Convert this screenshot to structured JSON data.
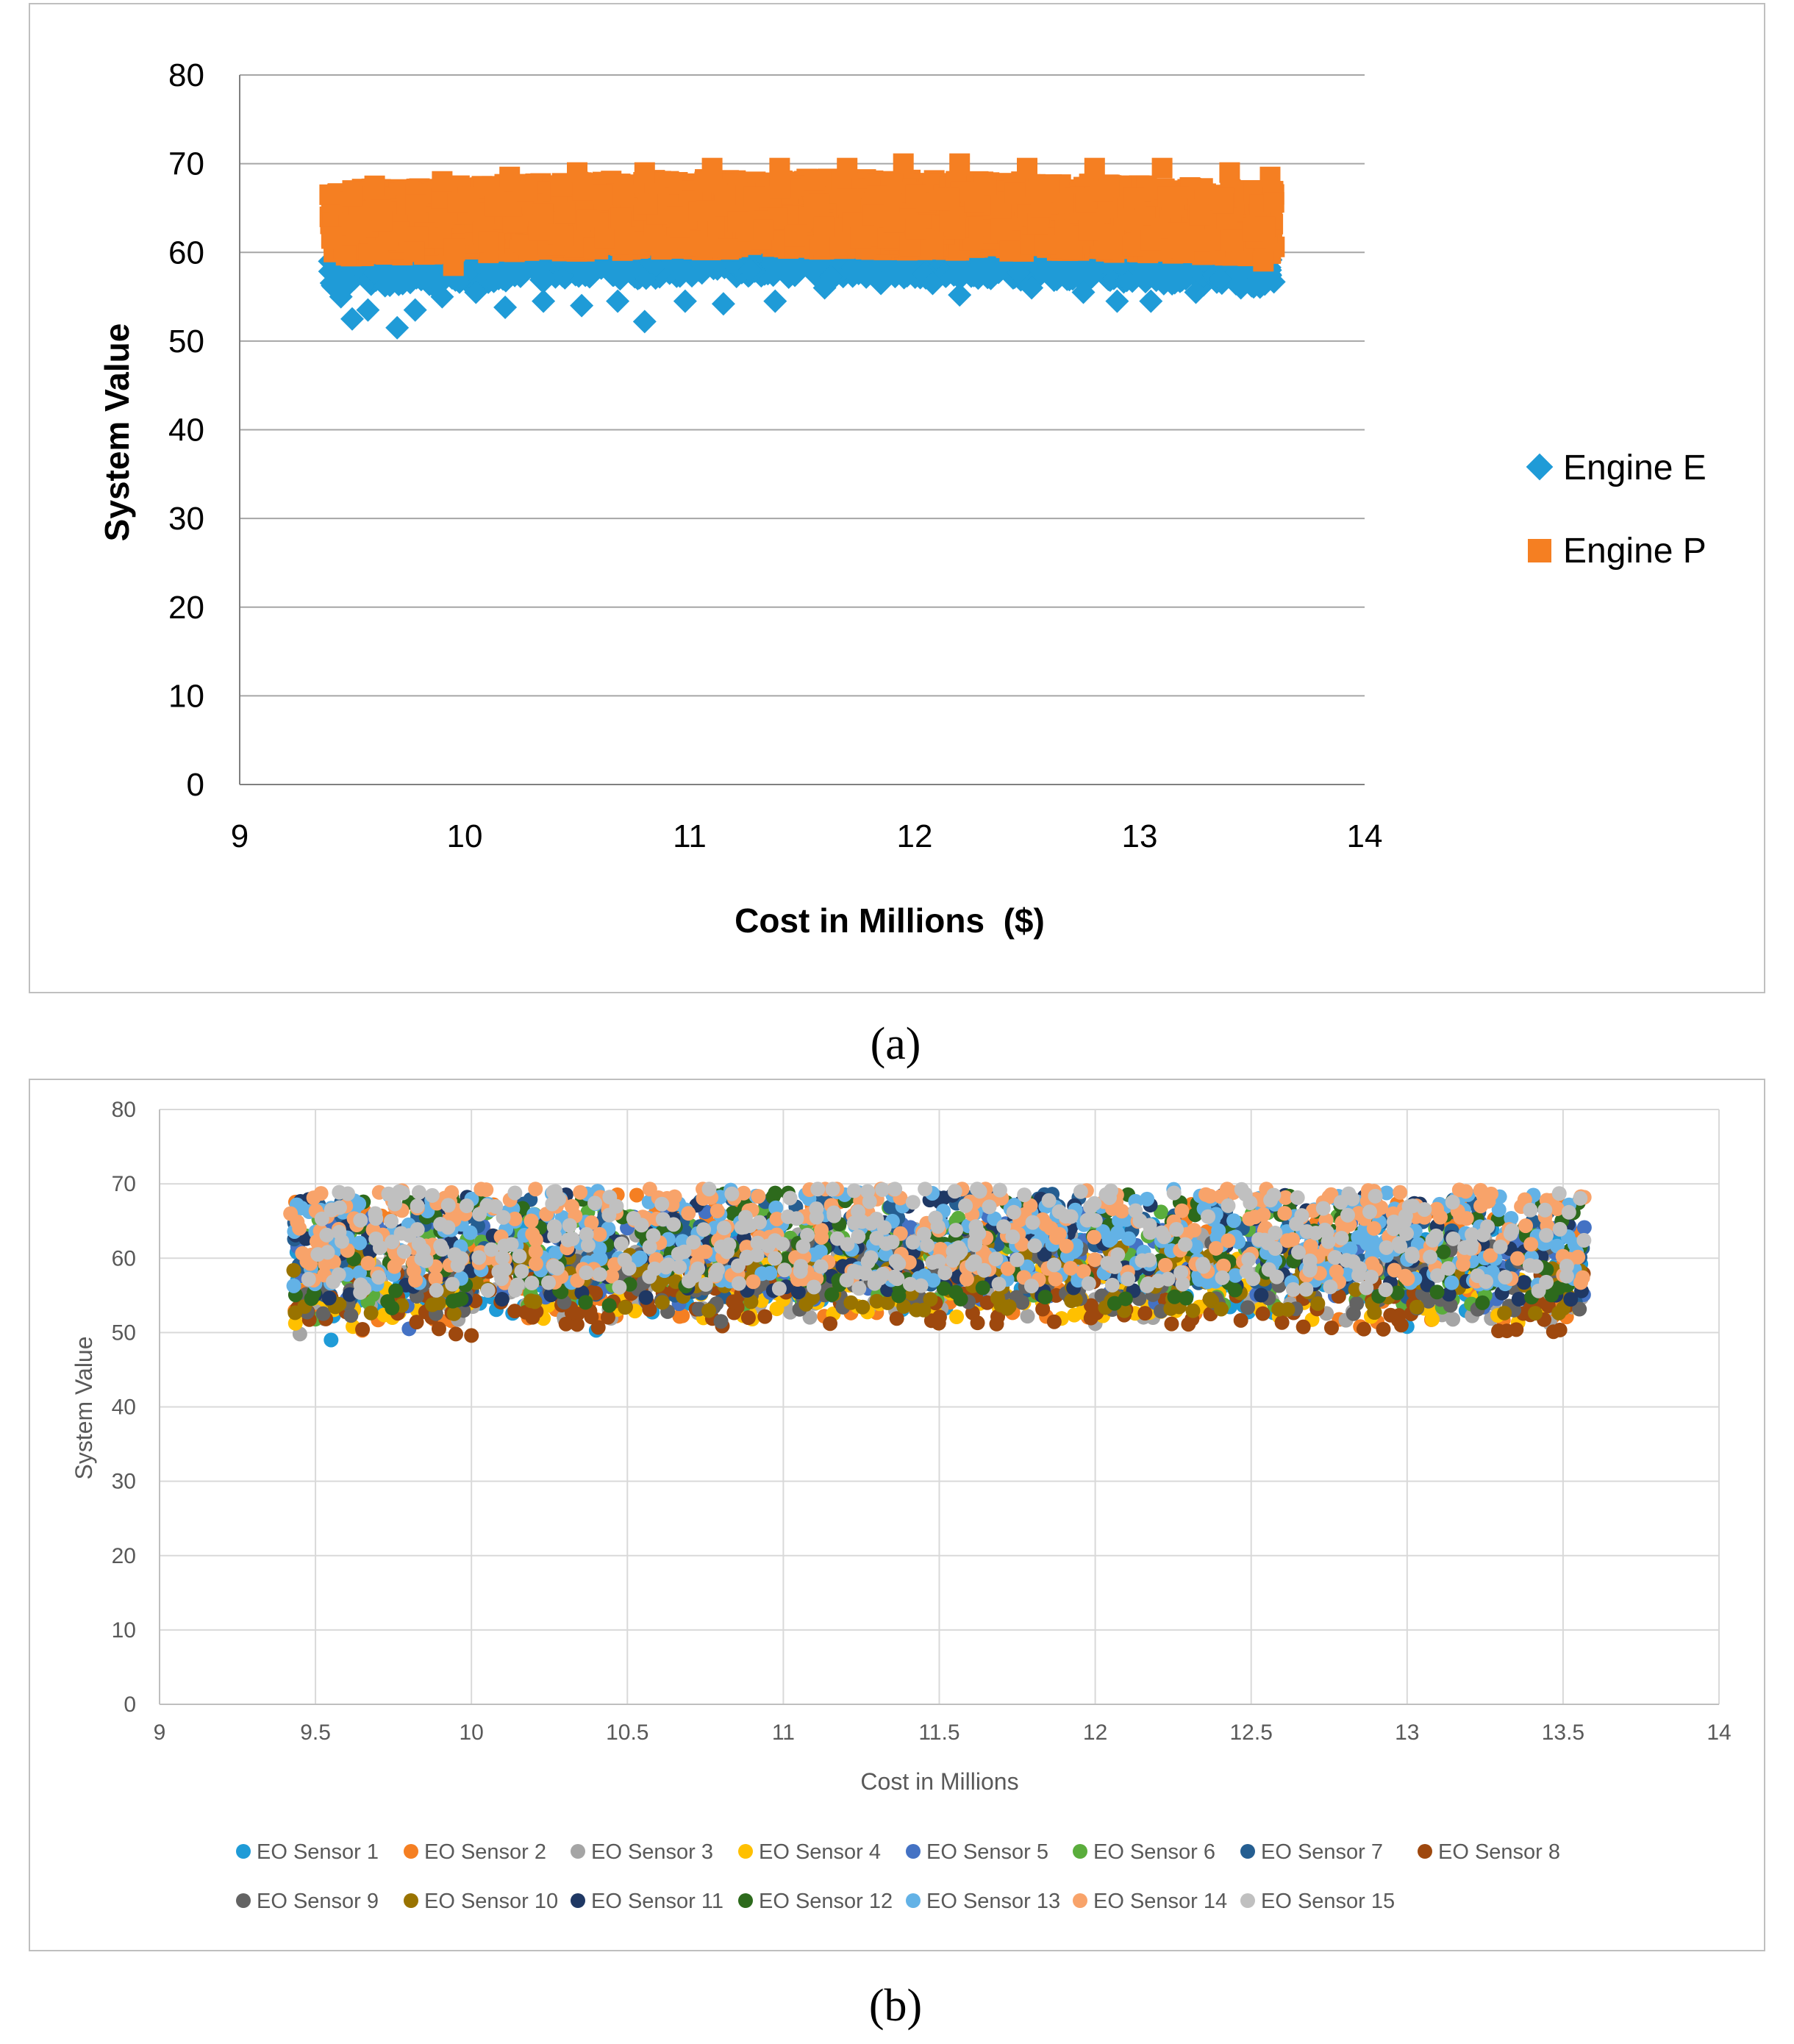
{
  "chart_data": [
    {
      "panel_label": "a",
      "type": "scatter",
      "title": "",
      "xlabel": "Cost in Millions  ($)",
      "ylabel": "System Value",
      "xlim": [
        9,
        14
      ],
      "ylim": [
        0,
        80
      ],
      "x_ticks": [
        "9",
        "10",
        "11",
        "12",
        "13",
        "14"
      ],
      "y_ticks": [
        "0",
        "10",
        "20",
        "30",
        "40",
        "50",
        "60",
        "70",
        "80"
      ],
      "grid": true,
      "legend_position": "right",
      "x_range": [
        9.4,
        13.6
      ],
      "series": [
        {
          "name": "Engine E",
          "color": "#1f9bd7",
          "marker": "diamond",
          "band": {
            "lower": 56,
            "upper": 60
          },
          "outliers": [
            [
              9.4,
              59
            ],
            [
              9.45,
              55
            ],
            [
              9.5,
              52.5
            ],
            [
              9.57,
              53.5
            ],
            [
              9.7,
              51.5
            ],
            [
              9.78,
              53.5
            ],
            [
              9.9,
              55
            ],
            [
              10.05,
              55.5
            ],
            [
              10.18,
              53.8
            ],
            [
              10.35,
              54.5
            ],
            [
              10.52,
              54
            ],
            [
              10.68,
              54.5
            ],
            [
              10.8,
              52.2
            ],
            [
              10.98,
              54.5
            ],
            [
              11.15,
              54.2
            ],
            [
              11.38,
              54.5
            ],
            [
              11.6,
              56
            ],
            [
              11.85,
              56.5
            ],
            [
              12.08,
              56.5
            ],
            [
              12.2,
              55.2
            ],
            [
              12.52,
              56
            ],
            [
              12.75,
              55.5
            ],
            [
              12.9,
              54.5
            ],
            [
              13.05,
              54.5
            ],
            [
              13.25,
              55.5
            ],
            [
              13.45,
              56
            ],
            [
              13.58,
              57.5
            ]
          ]
        },
        {
          "name": "Engine P",
          "color": "#f57f22",
          "marker": "square",
          "band": {
            "lower": 59.5,
            "upper": 68.5
          },
          "outliers": [
            [
              9.4,
              66.5
            ],
            [
              9.6,
              67.5
            ],
            [
              9.9,
              68
            ],
            [
              10.2,
              68.5
            ],
            [
              10.5,
              69
            ],
            [
              10.8,
              69
            ],
            [
              11.1,
              69.5
            ],
            [
              11.4,
              69.5
            ],
            [
              11.7,
              69.5
            ],
            [
              11.95,
              70
            ],
            [
              12.2,
              70
            ],
            [
              12.5,
              69.5
            ],
            [
              12.8,
              69.5
            ],
            [
              13.1,
              69.5
            ],
            [
              13.4,
              69
            ],
            [
              13.58,
              68.5
            ],
            [
              9.95,
              58.5
            ],
            [
              13.55,
              59
            ]
          ]
        }
      ]
    },
    {
      "panel_label": "b",
      "type": "scatter",
      "title": "",
      "xlabel": "Cost in Millions",
      "ylabel": "System Value",
      "xlim": [
        9,
        14
      ],
      "ylim": [
        0,
        80
      ],
      "x_ticks": [
        "9",
        "9.5",
        "10",
        "10.5",
        "11",
        "11.5",
        "12",
        "12.5",
        "13",
        "13.5",
        "14"
      ],
      "y_ticks": [
        "0",
        "10",
        "20",
        "30",
        "40",
        "50",
        "60",
        "70",
        "80"
      ],
      "grid": true,
      "legend_position": "bottom",
      "x_range": [
        9.43,
        13.57
      ],
      "y_range": [
        49,
        69
      ],
      "series": [
        {
          "name": "EO Sensor 1",
          "color": "#1f9bd7",
          "outliers": [
            [
              9.55,
              49
            ],
            [
              10.4,
              50.3
            ],
            [
              13,
              50.8
            ]
          ]
        },
        {
          "name": "EO Sensor 2",
          "color": "#f57f22",
          "outliers": [
            [
              9.65,
              50.3
            ],
            [
              12.85,
              50.8
            ]
          ]
        },
        {
          "name": "EO Sensor 3",
          "color": "#a5a5a5",
          "outliers": [
            [
              9.45,
              49.8
            ],
            [
              12,
              51.2
            ]
          ]
        },
        {
          "name": "EO Sensor 4",
          "color": "#ffc000",
          "outliers": [
            [
              9.62,
              50.8
            ],
            [
              13.55,
              53.2
            ]
          ]
        },
        {
          "name": "EO Sensor 5",
          "color": "#4472c4",
          "outliers": [
            [
              9.8,
              50.5
            ]
          ]
        },
        {
          "name": "EO Sensor 6",
          "color": "#5aad3c",
          "outliers": [
            [
              9.5,
              51.8
            ]
          ]
        },
        {
          "name": "EO Sensor 7",
          "color": "#255e91",
          "outliers": []
        },
        {
          "name": "EO Sensor 8",
          "color": "#9e480e",
          "outliers": [
            [
              9.95,
              49.8
            ],
            [
              10,
              49.6
            ],
            [
              13.35,
              50.4
            ],
            [
              11.15,
              51.2
            ]
          ]
        },
        {
          "name": "EO Sensor 9",
          "color": "#636363",
          "outliers": [
            [
              10.8,
              51.5
            ]
          ]
        },
        {
          "name": "EO Sensor 10",
          "color": "#997300",
          "outliers": []
        },
        {
          "name": "EO Sensor 11",
          "color": "#1f3864",
          "outliers": []
        },
        {
          "name": "EO Sensor 12",
          "color": "#2d6a1c",
          "outliers": []
        },
        {
          "name": "EO Sensor 13",
          "color": "#63b2e6",
          "outliers": []
        },
        {
          "name": "EO Sensor 14",
          "color": "#f8a36a",
          "outliers": [
            [
              9.42,
              66
            ]
          ]
        },
        {
          "name": "EO Sensor 15",
          "color": "#c0c0c0",
          "outliers": [
            [
              11.55,
              69
            ]
          ]
        }
      ]
    }
  ],
  "captions": {
    "a": "(a)",
    "b": "(b)"
  }
}
